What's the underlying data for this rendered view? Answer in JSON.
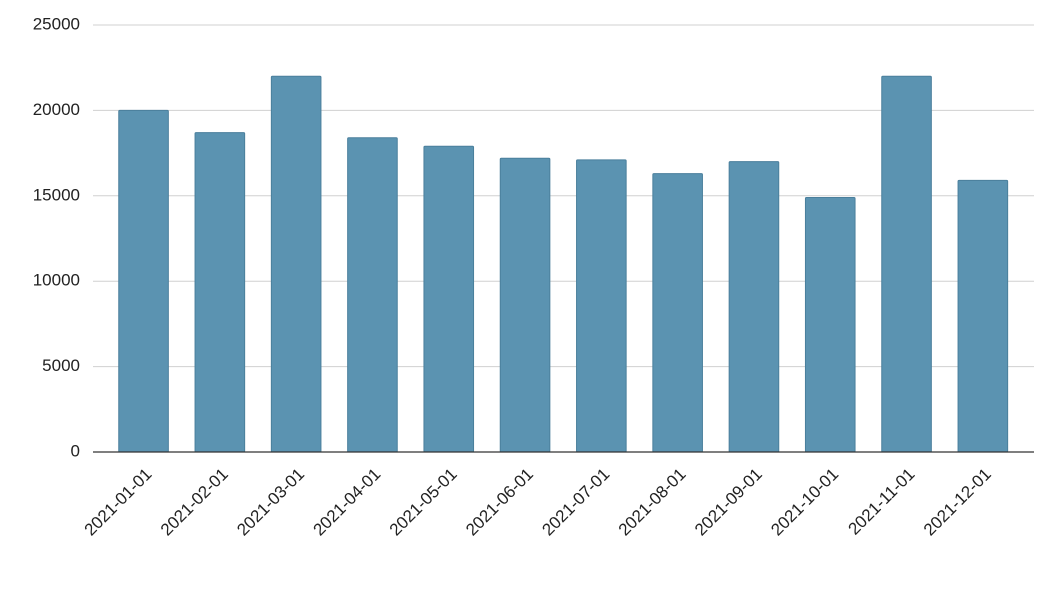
{
  "chart_data": {
    "type": "bar",
    "categories": [
      "2021-01-01",
      "2021-02-01",
      "2021-03-01",
      "2021-04-01",
      "2021-05-01",
      "2021-06-01",
      "2021-07-01",
      "2021-08-01",
      "2021-09-01",
      "2021-10-01",
      "2021-11-01",
      "2021-12-01"
    ],
    "values": [
      20000,
      18700,
      22000,
      18400,
      17900,
      17200,
      17100,
      16300,
      17000,
      14900,
      22000,
      15900
    ],
    "color": "#5b93b1",
    "ylim": [
      0,
      25000
    ],
    "yticks": [
      0,
      5000,
      10000,
      15000,
      20000,
      25000
    ],
    "grid": true
  }
}
